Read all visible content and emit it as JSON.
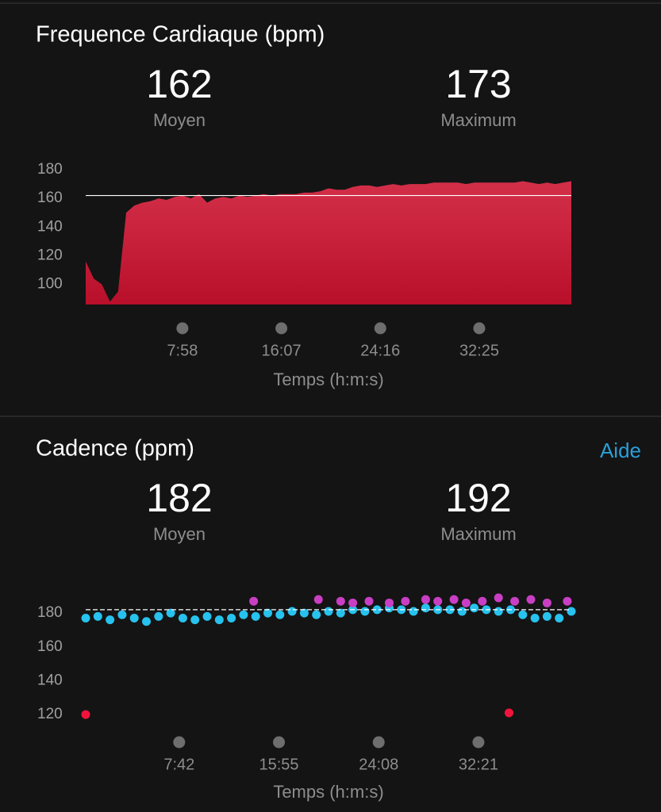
{
  "chart_data": [
    {
      "type": "area",
      "title": "Frequence Cardiaque (bpm)",
      "stats": [
        {
          "value": 162,
          "label": "Moyen"
        },
        {
          "value": 173,
          "label": "Maximum"
        }
      ],
      "xlabel": "Temps (h:m:s)",
      "color": "#e8324f",
      "x": [
        0,
        40,
        80,
        120,
        160,
        200,
        240,
        280,
        320,
        360,
        400,
        440,
        480,
        520,
        560,
        600,
        640,
        680,
        720,
        760,
        800,
        840,
        880,
        920,
        960,
        1000,
        1040,
        1080,
        1120,
        1160,
        1200,
        1240,
        1280,
        1320,
        1360,
        1400,
        1440,
        1480,
        1520,
        1560,
        1600,
        1640,
        1680,
        1720,
        1760,
        1800,
        1840,
        1880,
        1920,
        1960,
        2000,
        2040,
        2080,
        2120,
        2160,
        2200,
        2240,
        2280,
        2320,
        2360,
        2400
      ],
      "values": [
        116,
        104,
        100,
        88,
        95,
        150,
        155,
        157,
        158,
        160,
        159,
        161,
        162,
        160,
        163,
        157,
        160,
        161,
        160,
        162,
        161,
        162,
        163,
        162,
        163,
        163,
        163,
        164,
        164,
        165,
        167,
        166,
        166,
        168,
        169,
        169,
        168,
        169,
        170,
        169,
        170,
        170,
        170,
        171,
        171,
        171,
        171,
        170,
        171,
        171,
        171,
        171,
        171,
        171,
        172,
        171,
        170,
        171,
        170,
        171,
        172
      ],
      "xlim": [
        0,
        2400
      ],
      "ylim": [
        86,
        180
      ],
      "xticks": [
        {
          "value": 478,
          "label": "7:58"
        },
        {
          "value": 967,
          "label": "16:07"
        },
        {
          "value": 1456,
          "label": "24:16"
        },
        {
          "value": 1945,
          "label": "32:25"
        }
      ],
      "yticks": [
        100,
        120,
        140,
        160,
        180
      ]
    },
    {
      "type": "scatter",
      "title": "Cadence (ppm)",
      "help": "Aide",
      "stats": [
        {
          "value": 182,
          "label": "Moyen"
        },
        {
          "value": 192,
          "label": "Maximum"
        }
      ],
      "xlabel": "Temps (h:m:s)",
      "series": [
        {
          "color": "#27c2ee",
          "x": [
            0,
            60,
            120,
            180,
            240,
            300,
            360,
            420,
            480,
            540,
            600,
            660,
            720,
            780,
            840,
            900,
            960,
            1020,
            1080,
            1140,
            1200,
            1260,
            1320,
            1380,
            1440,
            1500,
            1560,
            1620,
            1680,
            1740,
            1800,
            1860,
            1920,
            1980,
            2040,
            2100,
            2160,
            2220,
            2280,
            2340,
            2400
          ],
          "values": [
            177,
            178,
            176,
            179,
            177,
            175,
            178,
            180,
            177,
            176,
            178,
            176,
            177,
            179,
            178,
            180,
            179,
            181,
            180,
            179,
            181,
            180,
            182,
            181,
            182,
            183,
            182,
            181,
            183,
            182,
            182,
            181,
            183,
            182,
            181,
            182,
            179,
            177,
            178,
            177,
            181
          ]
        },
        {
          "color": "#c93fc4",
          "x": [
            830,
            1150,
            1260,
            1320,
            1400,
            1500,
            1580,
            1680,
            1740,
            1820,
            1880,
            1960,
            2040,
            2120,
            2200,
            2280,
            2380
          ],
          "values": [
            187,
            188,
            187,
            186,
            187,
            186,
            187,
            188,
            187,
            188,
            186,
            187,
            189,
            187,
            188,
            186,
            187
          ]
        },
        {
          "color": "#f0143c",
          "x": [
            0,
            2092
          ],
          "values": [
            120,
            121
          ]
        }
      ],
      "xlim": [
        0,
        2400
      ],
      "ylim": [
        113,
        196
      ],
      "xticks": [
        {
          "value": 462,
          "label": "7:42"
        },
        {
          "value": 955,
          "label": "15:55"
        },
        {
          "value": 1448,
          "label": "24:08"
        },
        {
          "value": 1941,
          "label": "32:21"
        }
      ],
      "yticks": [
        120,
        140,
        160,
        180
      ]
    }
  ]
}
